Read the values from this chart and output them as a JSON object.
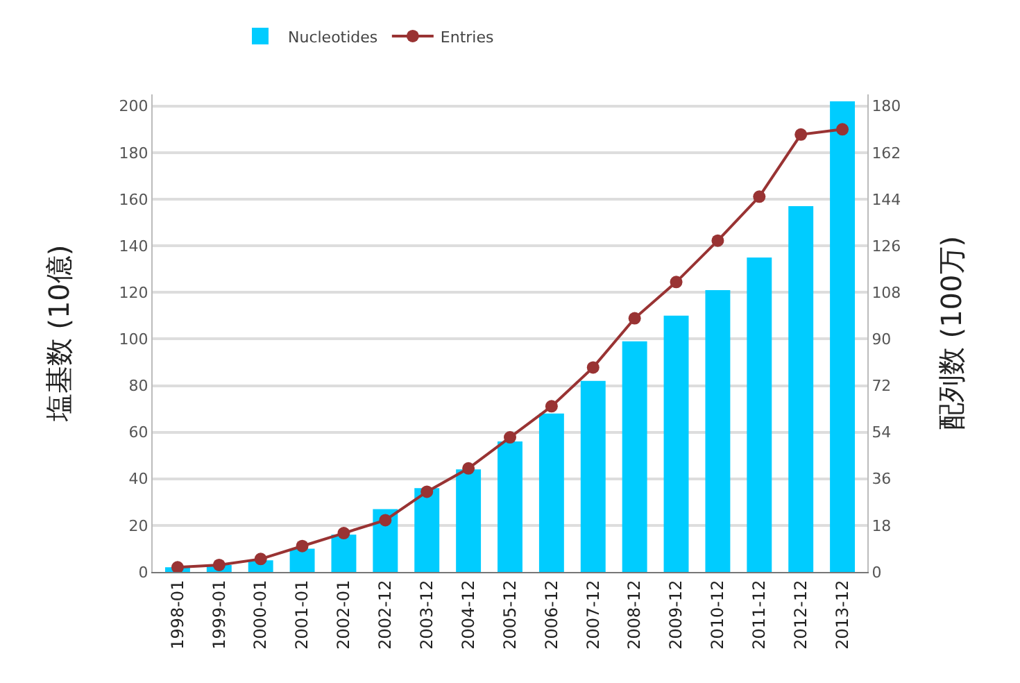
{
  "chart_data": {
    "type": "bar",
    "categories": [
      "1998-01",
      "1999-01",
      "2000-01",
      "2001-01",
      "2002-01",
      "2002-12",
      "2003-12",
      "2004-12",
      "2005-12",
      "2006-12",
      "2007-12",
      "2008-12",
      "2009-12",
      "2010-12",
      "2011-12",
      "2012-12",
      "2013-12"
    ],
    "series": [
      {
        "name": "Nucleotides",
        "color": "#00ccff",
        "values": [
          2,
          3,
          5,
          10,
          16,
          27,
          36,
          44,
          56,
          68,
          82,
          99,
          110,
          121,
          135,
          157,
          202
        ]
      },
      {
        "name": "Entries",
        "type": "line",
        "axis": "y2",
        "color": "#993333",
        "values": [
          1.8,
          2.7,
          5,
          10,
          15,
          20,
          31,
          40,
          52,
          64,
          79,
          98,
          112,
          128,
          145,
          169,
          171
        ]
      }
    ],
    "ylabel": "塩基数 (10億)",
    "y2label": "配列数 (100万)",
    "ylim": [
      0,
      205
    ],
    "yticks": [
      0,
      20,
      40,
      60,
      80,
      100,
      120,
      140,
      160,
      180,
      200
    ],
    "y2lim": [
      0,
      184.5
    ],
    "y2ticks": [
      0,
      18,
      36,
      54,
      72,
      90,
      108,
      126,
      144,
      162,
      180
    ],
    "grid": "y",
    "legend": "top",
    "marker": "circle",
    "line_style": "solid"
  }
}
